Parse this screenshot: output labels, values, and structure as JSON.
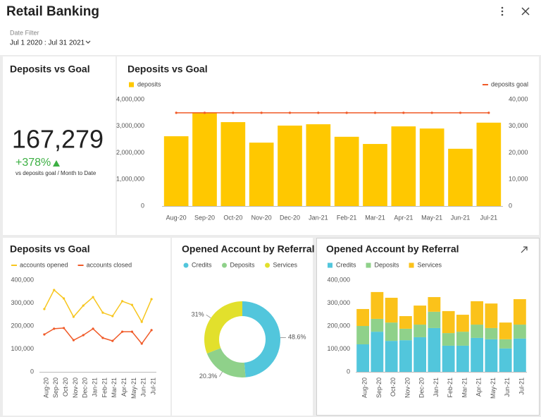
{
  "header": {
    "title": "Retail Banking",
    "filter_label": "Date Filter",
    "filter_value": "Jul 1 2020 : Jul 31 2021"
  },
  "kpi": {
    "title": "Deposits vs Goal",
    "value": "167,279",
    "change": "+378%",
    "caption": "vs deposits goal / Month to Date"
  },
  "chart_data": [
    {
      "type": "bar",
      "title": "Deposits vs Goal",
      "categories": [
        "Aug-20",
        "Sep-20",
        "Oct-20",
        "Nov-20",
        "Dec-20",
        "Jan-21",
        "Feb-21",
        "Mar-21",
        "Apr-21",
        "May-21",
        "Jun-21",
        "Jul-21"
      ],
      "series": [
        {
          "name": "deposits",
          "color": "#ffc800",
          "values": [
            2620000,
            3520000,
            3150000,
            2380000,
            3020000,
            3070000,
            2600000,
            2330000,
            2990000,
            2910000,
            2150000,
            3130000
          ]
        },
        {
          "name": "deposits goal",
          "color": "#f05a28",
          "type": "line",
          "axis": "y2",
          "values": [
            35000,
            35000,
            35000,
            35000,
            35000,
            35000,
            35000,
            35000,
            35000,
            35000,
            35000,
            35000
          ]
        }
      ],
      "ylim": [
        0,
        4000000
      ],
      "yticks": [
        0,
        {
          "value": 1000000,
          "label": "1,000,000"
        },
        {
          "value": 2000000,
          "label": "2,000,000"
        },
        {
          "value": 3000000,
          "label": "3,000,000"
        },
        {
          "value": 4000000,
          "label": "4,000,000"
        }
      ],
      "y2lim": [
        0,
        40000
      ],
      "y2ticks": [
        0,
        {
          "value": 10000,
          "label": "10,000"
        },
        {
          "value": 20000,
          "label": "20,000"
        },
        {
          "value": 30000,
          "label": "30,000"
        },
        {
          "value": 40000,
          "label": "40,000"
        }
      ],
      "grid": false,
      "legend": "top"
    },
    {
      "type": "line",
      "title": "Deposits vs Goal",
      "categories": [
        "Aug-20",
        "Sep-20",
        "Oct-20",
        "Nov-20",
        "Dec-20",
        "Jan-21",
        "Feb-21",
        "Mar-21",
        "Apr-21",
        "May-21",
        "Jun-21",
        "Jul-21"
      ],
      "series": [
        {
          "name": "accounts opened",
          "color": "#f7c61f",
          "values": [
            274000,
            357000,
            320000,
            240000,
            289000,
            326000,
            258000,
            243000,
            308000,
            292000,
            218000,
            317000
          ]
        },
        {
          "name": "accounts closed",
          "color": "#f05a28",
          "values": [
            163000,
            188000,
            191000,
            138000,
            160000,
            188000,
            148000,
            135000,
            175000,
            175000,
            123000,
            182000
          ]
        }
      ],
      "ylim": [
        0,
        400000
      ],
      "yticks": [
        0,
        {
          "value": 100000,
          "label": "100,000"
        },
        {
          "value": 200000,
          "label": "200,000"
        },
        {
          "value": 300000,
          "label": "300,000"
        },
        {
          "value": 400000,
          "label": "400,000"
        }
      ],
      "grid": false,
      "legend": "top"
    },
    {
      "type": "pie",
      "title": "Opened Account by Referral",
      "donut": true,
      "categories": [
        "Credits",
        "Deposits",
        "Services"
      ],
      "values": [
        48.6,
        20.3,
        31
      ],
      "value_labels": [
        "48.6%",
        "20.3%",
        "31%"
      ],
      "colors": [
        "#52c6dc",
        "#8fd18a",
        "#e2e02c"
      ],
      "legend": "top"
    },
    {
      "type": "bar",
      "stacked": true,
      "title": "Opened Account by Referral",
      "categories": [
        "Aug-20",
        "Sep-20",
        "Oct-20",
        "Nov-20",
        "Dec-20",
        "Jan-21",
        "Feb-21",
        "Mar-21",
        "Apr-21",
        "May-21",
        "Jun-21",
        "Jul-21"
      ],
      "series": [
        {
          "name": "Credits",
          "color": "#52c6dc",
          "values": [
            120000,
            175000,
            135000,
            138000,
            151000,
            191000,
            114000,
            114000,
            148000,
            142000,
            102000,
            145000
          ]
        },
        {
          "name": "Deposits",
          "color": "#8fd18a",
          "values": [
            80000,
            56000,
            80000,
            50000,
            55000,
            71000,
            55000,
            61000,
            58000,
            49000,
            40000,
            61000
          ]
        },
        {
          "name": "Services",
          "color": "#fbc21a",
          "values": [
            74000,
            117000,
            108000,
            55000,
            83000,
            64000,
            96000,
            74000,
            102000,
            107000,
            73000,
            111000
          ]
        }
      ],
      "ylim": [
        0,
        400000
      ],
      "yticks": [
        0,
        {
          "value": 100000,
          "label": "100,000"
        },
        {
          "value": 200000,
          "label": "200,000"
        },
        {
          "value": 300000,
          "label": "300,000"
        },
        {
          "value": 400000,
          "label": "400,000"
        }
      ],
      "grid": false,
      "legend": "top"
    }
  ]
}
